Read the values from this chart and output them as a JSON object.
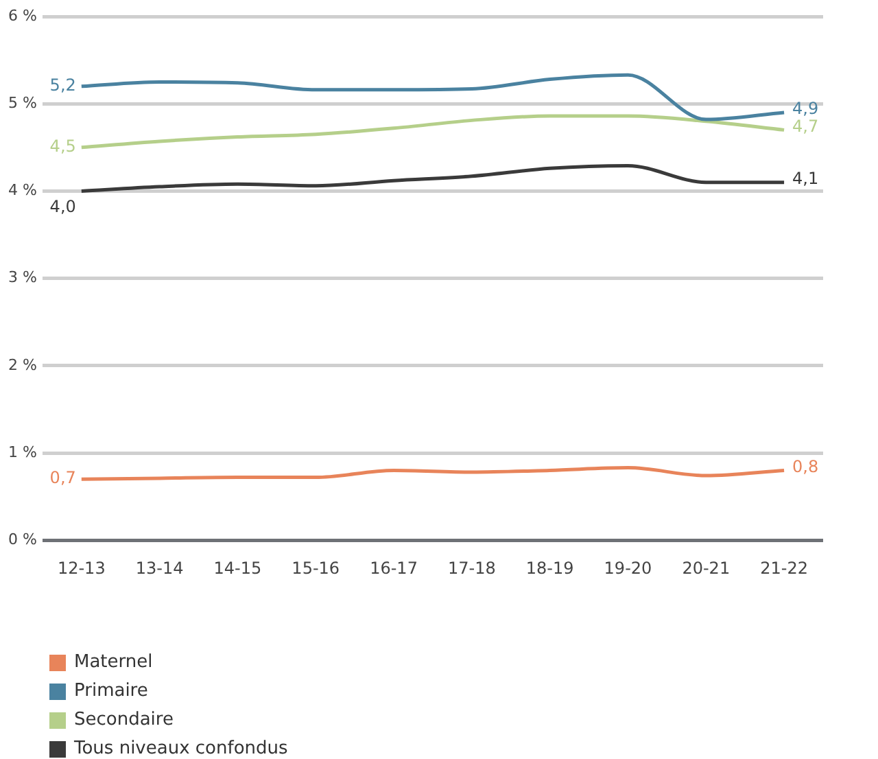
{
  "chart_data": {
    "type": "line",
    "categories": [
      "12-13",
      "13-14",
      "14-15",
      "15-16",
      "16-17",
      "17-18",
      "18-19",
      "19-20",
      "20-21",
      "21-22"
    ],
    "series": [
      {
        "name": "Maternel",
        "color": "#e8845a",
        "values": [
          0.7,
          0.71,
          0.72,
          0.72,
          0.8,
          0.78,
          0.8,
          0.83,
          0.74,
          0.8
        ],
        "value_labels": [
          "0,7",
          null,
          null,
          null,
          null,
          null,
          null,
          null,
          null,
          "0,8"
        ]
      },
      {
        "name": "Primaire",
        "color": "#4a82a0",
        "values": [
          5.2,
          5.25,
          5.24,
          5.16,
          5.16,
          5.17,
          5.28,
          5.33,
          4.82,
          4.9
        ],
        "value_labels": [
          "5,2",
          null,
          null,
          null,
          null,
          null,
          null,
          null,
          null,
          "4,9"
        ]
      },
      {
        "name": "Secondaire",
        "color": "#b5cf8a",
        "values": [
          4.5,
          4.57,
          4.62,
          4.65,
          4.72,
          4.81,
          4.86,
          4.86,
          4.8,
          4.7
        ],
        "value_labels": [
          "4,5",
          null,
          null,
          null,
          null,
          null,
          null,
          null,
          null,
          "4,7"
        ]
      },
      {
        "name": "Tous niveaux confondus",
        "color": "#3a3a3a",
        "values": [
          4.0,
          4.05,
          4.08,
          4.06,
          4.12,
          4.17,
          4.26,
          4.29,
          4.1,
          4.1
        ],
        "value_labels": [
          "4,0",
          null,
          null,
          null,
          null,
          null,
          null,
          null,
          null,
          "4,1"
        ]
      }
    ],
    "ylim": [
      0,
      6
    ],
    "yticks": [
      {
        "value": 0,
        "label": "0 %"
      },
      {
        "value": 1,
        "label": "1 %"
      },
      {
        "value": 2,
        "label": "2 %"
      },
      {
        "value": 3,
        "label": "3 %"
      },
      {
        "value": 4,
        "label": "4 %"
      },
      {
        "value": 5,
        "label": "5 %"
      },
      {
        "value": 6,
        "label": "6 %"
      }
    ],
    "grid": "y",
    "legend": "bottom left",
    "marker": "none",
    "line_style": "solid"
  }
}
